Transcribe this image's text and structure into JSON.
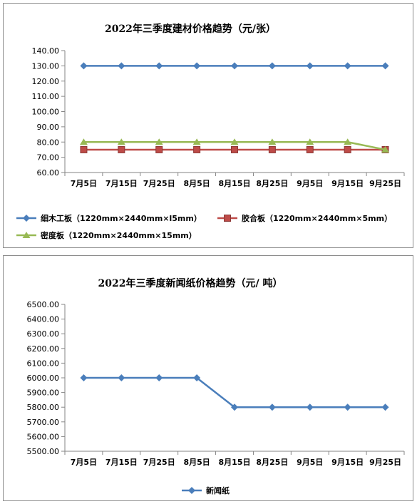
{
  "chart_data": [
    {
      "type": "line",
      "title": "2022年三季度建材价格趋势（元/张）",
      "categories": [
        "7月5日",
        "7月15日",
        "7月25日",
        "8月5日",
        "8月15日",
        "8月25日",
        "9月5日",
        "9月15日",
        "9月25日"
      ],
      "ylim": [
        60,
        140
      ],
      "ystep": 10,
      "y_tick_labels": [
        "60.00",
        "70.00",
        "80.00",
        "90.00",
        "100.00",
        "110.00",
        "120.00",
        "130.00",
        "140.00"
      ],
      "grid": false,
      "legend": "bottom",
      "series": [
        {
          "name": "细木工板（1220mm×2440mm×l5mm）",
          "color": "#4a7ebb",
          "marker": "diamond",
          "values": [
            130,
            130,
            130,
            130,
            130,
            130,
            130,
            130,
            130
          ]
        },
        {
          "name": "胶合板（1220mm×2440mm×5mm）",
          "color": "#be4b48",
          "marker": "square",
          "values": [
            75,
            75,
            75,
            75,
            75,
            75,
            75,
            75,
            75
          ]
        },
        {
          "name": "密度板（1220mm×2440mm×15mm）",
          "color": "#98b954",
          "marker": "triangle",
          "values": [
            80,
            80,
            80,
            80,
            80,
            80,
            80,
            80,
            75
          ]
        }
      ]
    },
    {
      "type": "line",
      "title": "2022年三季度新闻纸价格趋势（元/ 吨）",
      "categories": [
        "7月5日",
        "7月15日",
        "7月25日",
        "8月5日",
        "8月15日",
        "8月25日",
        "9月5日",
        "9月15日",
        "9月25日"
      ],
      "ylim": [
        5500,
        6500
      ],
      "ystep": 100,
      "y_tick_labels": [
        "5500.00",
        "5600.00",
        "5700.00",
        "5800.00",
        "5900.00",
        "6000.00",
        "6100.00",
        "6200.00",
        "6300.00",
        "6400.00",
        "6500.00"
      ],
      "grid": false,
      "legend": "bottom",
      "series": [
        {
          "name": "新闻纸",
          "color": "#4a7ebb",
          "marker": "diamond",
          "values": [
            6000,
            6000,
            6000,
            6000,
            5800,
            5800,
            5800,
            5800,
            5800
          ]
        }
      ]
    }
  ]
}
